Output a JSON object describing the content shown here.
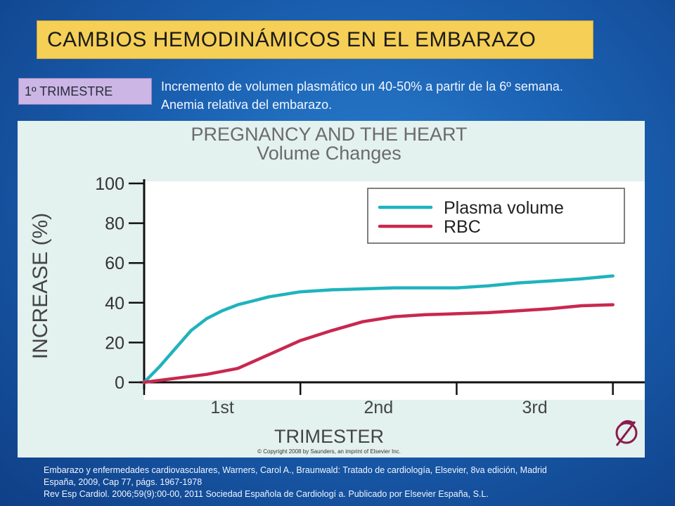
{
  "slide": {
    "title": "CAMBIOS HEMODINÁMICOS EN EL EMBARAZO",
    "trimester_label": "1º TRIMESTRE",
    "description_lines": [
      "Incremento de volumen plasmático un 40-50% a partir de la 6º semana.",
      "Anemia relativa del embarazo."
    ],
    "references": [
      "Embarazo y enfermedades cardiovasculares, Warners, Carol A., Braunwald: Tratado de cardiología, Elsevier, 8va edición, Madrid",
      "España, 2009,  Cap 77, págs. 1967-1978",
      "Rev Esp Cardiol. 2006;59(9):00-00,  2011 Sociedad Española de Cardiologí a. Publicado por Elsevier España, S.L."
    ]
  },
  "chart_data": {
    "type": "line",
    "title": "PREGNANCY AND THE HEART",
    "subtitle": "Volume Changes",
    "xlabel": "TRIMESTER",
    "ylabel": "INCREASE (%)",
    "ylim": [
      0,
      100
    ],
    "yticks": [
      0,
      20,
      40,
      60,
      80,
      100
    ],
    "xlim": [
      0,
      3.15
    ],
    "xticks": [
      {
        "value": 0.5,
        "label": "1st"
      },
      {
        "value": 1.5,
        "label": "2nd"
      },
      {
        "value": 2.5,
        "label": "3rd"
      }
    ],
    "grid": false,
    "legend_position": "top-right",
    "copyright": "© Copyright 2008 by Saunders, an imprint of Elsevier Inc.",
    "series": [
      {
        "name": "Plasma volume",
        "color": "#1fb3bd",
        "x": [
          0,
          0.1,
          0.2,
          0.3,
          0.4,
          0.5,
          0.6,
          0.7,
          0.8,
          1.0,
          1.2,
          1.4,
          1.6,
          1.8,
          2.0,
          2.2,
          2.4,
          2.6,
          2.8,
          3.0
        ],
        "y": [
          0,
          8,
          17,
          26,
          32,
          36,
          39,
          41,
          43,
          45.5,
          46.5,
          47,
          47.5,
          47.5,
          47.5,
          48.5,
          50,
          51,
          52,
          53.5
        ]
      },
      {
        "name": "RBC",
        "color": "#c8284f",
        "x": [
          0,
          0.2,
          0.4,
          0.6,
          0.8,
          1.0,
          1.2,
          1.4,
          1.6,
          1.8,
          2.0,
          2.2,
          2.4,
          2.6,
          2.8,
          3.0
        ],
        "y": [
          0,
          2,
          4,
          7,
          14,
          21,
          26,
          30.5,
          33,
          34,
          34.5,
          35,
          36,
          37,
          38.5,
          39
        ]
      }
    ]
  }
}
